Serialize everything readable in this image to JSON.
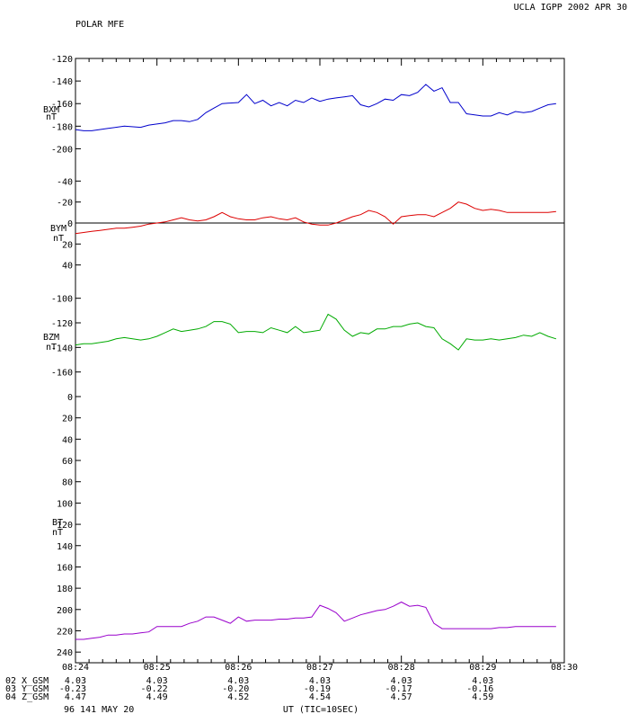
{
  "header": {
    "left": "POLAR MFE",
    "right": "UCLA IGPP 2002 APR 30"
  },
  "footer": {
    "left": "96 141 MAY 20",
    "center": "UT (TIC=10SEC)"
  },
  "colors": {
    "bxm": "#0000cc",
    "bym": "#dd0000",
    "bzm": "#00aa00",
    "bt": "#9900cc",
    "frame": "#000000"
  },
  "chart_data": {
    "type": "line",
    "x_tick_labels": [
      "08:24",
      "08:25",
      "08:26",
      "08:27",
      "08:28",
      "08:29",
      "08:30"
    ],
    "x_range_min": [
      0,
      6
    ],
    "tic_seconds": 10,
    "panels": [
      {
        "id": "bxm",
        "label_line1": "BXM",
        "label_line2": "nT",
        "inverted": true,
        "ylim": [
          -120,
          -210
        ],
        "ticks": [
          -120,
          -140,
          -160,
          -180,
          -200
        ],
        "tick_labels": [
          "-120",
          "-140",
          "-160",
          "-180",
          "-200"
        ],
        "zero_line": false,
        "series": [
          {
            "color_key": "bxm",
            "x": [
              0,
              0.1,
              0.2,
              0.4,
              0.6,
              0.8,
              0.9,
              1.1,
              1.2,
              1.3,
              1.4,
              1.5,
              1.6,
              1.7,
              1.8,
              2.0,
              2.1,
              2.2,
              2.3,
              2.4,
              2.5,
              2.6,
              2.7,
              2.8,
              2.9,
              3.0,
              3.1,
              3.2,
              3.3,
              3.4,
              3.5,
              3.6,
              3.7,
              3.8,
              3.9,
              4.0,
              4.1,
              4.2,
              4.3,
              4.4,
              4.5,
              4.6,
              4.7,
              4.8,
              5.0,
              5.1,
              5.2,
              5.3,
              5.4,
              5.5,
              5.6,
              5.7,
              5.8,
              5.9
            ],
            "y": [
              -183,
              -184,
              -184,
              -182,
              -180,
              -181,
              -179,
              -177,
              -175,
              -175,
              -176,
              -174,
              -168,
              -164,
              -160,
              -159,
              -152,
              -160,
              -157,
              -162,
              -159,
              -162,
              -157,
              -159,
              -155,
              -158,
              -156,
              -155,
              -154,
              -153,
              -161,
              -163,
              -160,
              -156,
              -157,
              -152,
              -153,
              -150,
              -143,
              -149,
              -146,
              -159,
              -159,
              -169,
              -171,
              -171,
              -168,
              -170,
              -167,
              -168,
              -167,
              -164,
              -161,
              -160
            ]
          }
        ]
      },
      {
        "id": "bym",
        "label_line1": "BYM",
        "label_line2": "nT",
        "inverted": false,
        "ylim": [
          -60,
          60
        ],
        "ticks": [
          40,
          20,
          0,
          -20,
          -40
        ],
        "tick_labels": [
          "40",
          "20",
          "0",
          "-20",
          "-40"
        ],
        "zero_line": true,
        "series": [
          {
            "color_key": "bym",
            "x": [
              0,
              0.1,
              0.2,
              0.3,
              0.4,
              0.5,
              0.6,
              0.7,
              0.8,
              0.9,
              1.0,
              1.1,
              1.2,
              1.3,
              1.4,
              1.5,
              1.6,
              1.7,
              1.8,
              1.9,
              2.0,
              2.1,
              2.2,
              2.3,
              2.4,
              2.5,
              2.6,
              2.7,
              2.8,
              2.9,
              3.0,
              3.1,
              3.2,
              3.3,
              3.4,
              3.5,
              3.6,
              3.7,
              3.8,
              3.9,
              4.0,
              4.1,
              4.2,
              4.3,
              4.4,
              4.5,
              4.6,
              4.7,
              4.8,
              4.9,
              5.0,
              5.1,
              5.2,
              5.3,
              5.4,
              5.5,
              5.6,
              5.7,
              5.8,
              5.9
            ],
            "y": [
              10,
              9,
              8,
              7,
              6,
              5,
              5,
              4,
              3,
              1,
              0,
              -1,
              -3,
              -5,
              -3,
              -2,
              -3,
              -6,
              -10,
              -6,
              -4,
              -3,
              -3,
              -5,
              -6,
              -4,
              -3,
              -5,
              -1,
              1,
              2,
              2,
              0,
              -3,
              -6,
              -8,
              -12,
              -10,
              -6,
              1,
              -6,
              -7,
              -8,
              -8,
              -6,
              -10,
              -14,
              -20,
              -18,
              -14,
              -12,
              -13,
              -12,
              -10,
              -10,
              -10,
              -10,
              -10,
              -10,
              -11
            ]
          }
        ]
      },
      {
        "id": "bzm",
        "label_line1": "BZM",
        "label_line2": "nT",
        "inverted": true,
        "ylim": [
          -90,
          -180
        ],
        "ticks": [
          -100,
          -120,
          -140,
          -160
        ],
        "tick_labels": [
          "-100",
          "-120",
          "-140",
          "-160"
        ],
        "zero_line": false,
        "series": [
          {
            "color_key": "bzm",
            "x": [
              0,
              0.1,
              0.2,
              0.3,
              0.4,
              0.5,
              0.6,
              0.7,
              0.8,
              0.9,
              1.0,
              1.1,
              1.2,
              1.3,
              1.4,
              1.5,
              1.6,
              1.7,
              1.8,
              1.9,
              2.0,
              2.1,
              2.2,
              2.3,
              2.4,
              2.5,
              2.6,
              2.7,
              2.8,
              2.9,
              3.0,
              3.1,
              3.2,
              3.3,
              3.4,
              3.5,
              3.6,
              3.7,
              3.8,
              3.9,
              4.0,
              4.1,
              4.2,
              4.3,
              4.4,
              4.5,
              4.6,
              4.7,
              4.8,
              4.9,
              5.0,
              5.1,
              5.2,
              5.3,
              5.4,
              5.5,
              5.6,
              5.7,
              5.8,
              5.9
            ],
            "y": [
              -138,
              -137,
              -137,
              -136,
              -135,
              -133,
              -132,
              -133,
              -134,
              -133,
              -131,
              -128,
              -125,
              -127,
              -126,
              -125,
              -123,
              -119,
              -119,
              -121,
              -128,
              -127,
              -127,
              -128,
              -124,
              -126,
              -128,
              -123,
              -128,
              -127,
              -126,
              -113,
              -117,
              -126,
              -131,
              -128,
              -129,
              -125,
              -125,
              -123,
              -123,
              -121,
              -120,
              -123,
              -124,
              -133,
              -137,
              -142,
              -133,
              -134,
              -134,
              -133,
              -134,
              -133,
              -132,
              -130,
              -131,
              -128,
              -131,
              -133
            ]
          }
        ]
      },
      {
        "id": "bt",
        "label_line1": "BT",
        "label_line2": "nT",
        "inverted": false,
        "ylim": [
          0,
          250
        ],
        "ticks": [
          240,
          220,
          200,
          180,
          160,
          140,
          120,
          100,
          80,
          60,
          40,
          20,
          0
        ],
        "tick_labels": [
          "240",
          "220",
          "200",
          "180",
          "160",
          "140",
          "120",
          "100",
          "80",
          "60",
          "40",
          "20",
          "0"
        ],
        "zero_line": false,
        "series": [
          {
            "color_key": "bt",
            "x": [
              0,
              0.1,
              0.2,
              0.3,
              0.4,
              0.5,
              0.6,
              0.7,
              0.8,
              0.9,
              1.0,
              1.1,
              1.2,
              1.3,
              1.4,
              1.5,
              1.6,
              1.7,
              1.8,
              1.9,
              2.0,
              2.1,
              2.2,
              2.3,
              2.4,
              2.5,
              2.6,
              2.7,
              2.8,
              2.9,
              3.0,
              3.1,
              3.2,
              3.3,
              3.4,
              3.5,
              3.6,
              3.7,
              3.8,
              3.9,
              4.0,
              4.1,
              4.2,
              4.3,
              4.4,
              4.5,
              4.6,
              4.7,
              4.8,
              4.9,
              5.0,
              5.1,
              5.2,
              5.3,
              5.4,
              5.5,
              5.6,
              5.7,
              5.8,
              5.9
            ],
            "y": [
              228,
              228,
              227,
              226,
              224,
              224,
              223,
              223,
              222,
              221,
              216,
              216,
              216,
              216,
              213,
              211,
              207,
              207,
              210,
              213,
              207,
              211,
              210,
              210,
              210,
              209,
              209,
              208,
              208,
              207,
              196,
              199,
              203,
              211,
              208,
              205,
              203,
              201,
              200,
              197,
              193,
              197,
              196,
              198,
              213,
              218,
              218,
              218,
              218,
              218,
              218,
              218,
              217,
              217,
              216,
              216,
              216,
              216,
              216,
              216
            ]
          }
        ]
      }
    ],
    "bottom_rows": [
      {
        "label": "02 X_GSM",
        "values": [
          "4.03",
          "4.03",
          "4.03",
          "4.03",
          "4.03",
          "4.03"
        ]
      },
      {
        "label": "03 Y_GSM",
        "values": [
          "-0.23",
          "-0.22",
          "-0.20",
          "-0.19",
          "-0.17",
          "-0.16"
        ]
      },
      {
        "label": "04 Z_GSM",
        "values": [
          "4.47",
          "4.49",
          "4.52",
          "4.54",
          "4.57",
          "4.59"
        ]
      }
    ]
  }
}
